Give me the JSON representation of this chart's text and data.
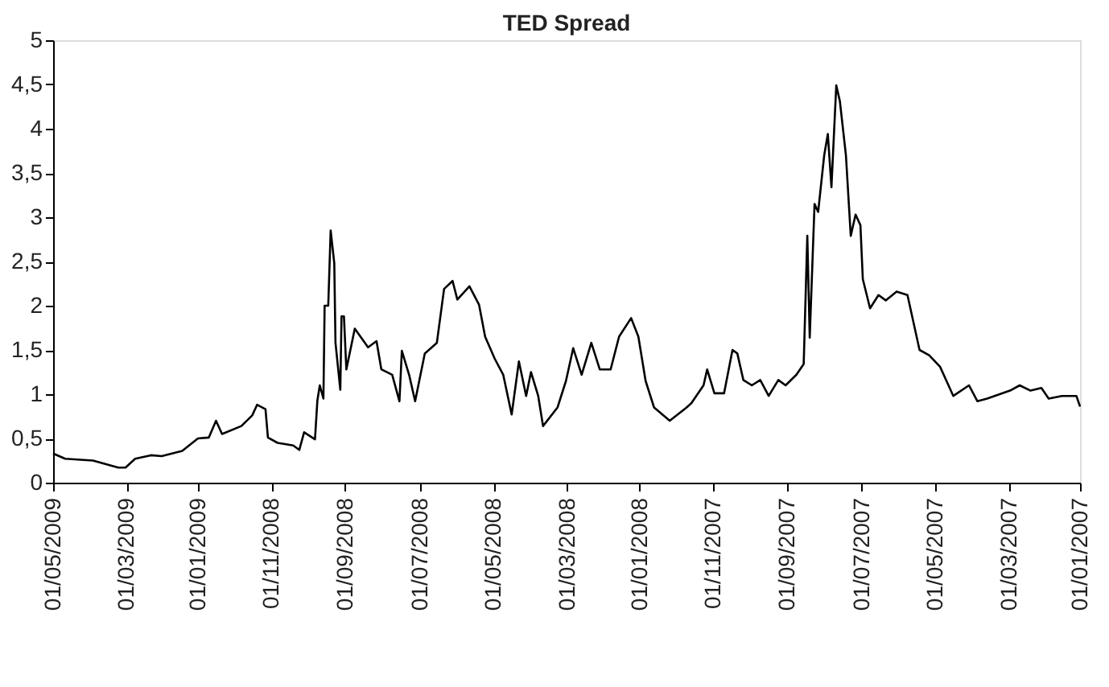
{
  "chart_data": {
    "type": "line",
    "title": "TED Spread",
    "x": [
      "2009-05-01",
      "2009-04-21",
      "2009-03-29",
      "2009-03-08",
      "2009-03-02",
      "2009-02-22",
      "2009-02-09",
      "2009-01-31",
      "2009-01-14",
      "2009-01-01",
      "2008-12-23",
      "2008-12-17",
      "2008-12-12",
      "2008-11-26",
      "2008-11-17",
      "2008-11-13",
      "2008-11-06",
      "2008-11-04",
      "2008-10-27",
      "2008-10-14",
      "2008-10-09",
      "2008-10-05",
      "2008-09-26",
      "2008-09-24",
      "2008-09-22",
      "2008-09-19",
      "2008-09-18",
      "2008-09-15",
      "2008-09-13",
      "2008-09-10",
      "2008-09-09",
      "2008-09-05",
      "2008-09-04",
      "2008-09-02",
      "2008-08-31",
      "2008-08-24",
      "2008-08-13",
      "2008-08-06",
      "2008-08-02",
      "2008-07-24",
      "2008-07-18",
      "2008-07-16",
      "2008-07-10",
      "2008-07-05",
      "2008-06-27",
      "2008-06-17",
      "2008-06-11",
      "2008-06-04",
      "2008-05-31",
      "2008-05-21",
      "2008-05-13",
      "2008-05-08",
      "2008-04-30",
      "2008-04-23",
      "2008-04-16",
      "2008-04-10",
      "2008-04-04",
      "2008-03-31",
      "2008-03-25",
      "2008-03-21",
      "2008-03-09",
      "2008-03-02",
      "2008-02-25",
      "2008-02-18",
      "2008-02-10",
      "2008-02-03",
      "2008-01-25",
      "2008-01-18",
      "2008-01-08",
      "2008-01-02",
      "2007-12-27",
      "2007-12-20",
      "2007-12-07",
      "2007-11-23",
      "2007-11-19",
      "2007-11-09",
      "2007-11-06",
      "2007-10-31",
      "2007-10-23",
      "2007-10-16",
      "2007-10-12",
      "2007-10-07",
      "2007-09-30",
      "2007-09-23",
      "2007-09-16",
      "2007-09-08",
      "2007-09-02",
      "2007-08-24",
      "2007-08-18",
      "2007-08-15",
      "2007-08-13",
      "2007-08-09",
      "2007-08-06",
      "2007-08-01",
      "2007-07-29",
      "2007-07-26",
      "2007-07-22",
      "2007-07-19",
      "2007-07-14",
      "2007-07-10",
      "2007-07-06",
      "2007-07-02",
      "2007-06-30",
      "2007-06-24",
      "2007-06-17",
      "2007-06-11",
      "2007-06-02",
      "2007-05-24",
      "2007-05-14",
      "2007-05-06",
      "2007-04-27",
      "2007-04-20",
      "2007-04-16",
      "2007-04-03",
      "2007-03-27",
      "2007-03-19",
      "2007-02-28",
      "2007-02-20",
      "2007-02-11",
      "2007-02-02",
      "2007-01-27",
      "2007-01-16",
      "2007-01-04",
      "2007-01-01"
    ],
    "series": [
      {
        "color": "#000000",
        "values": [
          0.33,
          0.27,
          0.25,
          0.17,
          0.17,
          0.27,
          0.31,
          0.3,
          0.36,
          0.5,
          0.51,
          0.7,
          0.55,
          0.64,
          0.76,
          0.88,
          0.83,
          0.51,
          0.45,
          0.42,
          0.37,
          0.57,
          0.49,
          0.93,
          1.1,
          0.95,
          2.0,
          2.0,
          2.85,
          2.48,
          1.58,
          1.05,
          1.88,
          1.88,
          1.28,
          1.74,
          1.53,
          1.6,
          1.28,
          1.22,
          0.92,
          1.49,
          1.22,
          0.92,
          1.46,
          1.58,
          2.19,
          2.28,
          2.07,
          2.22,
          2.01,
          1.65,
          1.4,
          1.22,
          0.77,
          1.37,
          0.98,
          1.25,
          0.98,
          0.64,
          0.85,
          1.15,
          1.52,
          1.22,
          1.58,
          1.28,
          1.28,
          1.65,
          1.86,
          1.65,
          1.15,
          0.85,
          0.7,
          0.85,
          0.9,
          1.1,
          1.28,
          1.01,
          1.01,
          1.5,
          1.46,
          1.16,
          1.1,
          1.16,
          0.98,
          1.16,
          1.1,
          1.22,
          1.34,
          2.79,
          1.64,
          3.15,
          3.06,
          3.7,
          3.94,
          3.34,
          4.49,
          4.31,
          3.7,
          2.79,
          3.03,
          2.91,
          2.3,
          1.97,
          2.12,
          2.06,
          2.16,
          2.12,
          1.5,
          1.44,
          1.31,
          1.1,
          0.98,
          1.1,
          0.92,
          0.95,
          1.04,
          1.1,
          1.04,
          1.07,
          0.95,
          0.98,
          0.98,
          0.86
        ]
      }
    ],
    "xlim": [
      "2009-05-01",
      "2007-01-01"
    ],
    "xticks": [
      {
        "value": "2009-05-01",
        "label": "01/05/2009"
      },
      {
        "value": "2009-03-01",
        "label": "01/03/2009"
      },
      {
        "value": "2009-01-01",
        "label": "01/01/2009"
      },
      {
        "value": "2008-11-01",
        "label": "01/11/2008"
      },
      {
        "value": "2008-09-01",
        "label": "01/09/2008"
      },
      {
        "value": "2008-07-01",
        "label": "01/07/2008"
      },
      {
        "value": "2008-05-01",
        "label": "01/05/2008"
      },
      {
        "value": "2008-03-01",
        "label": "01/03/2008"
      },
      {
        "value": "2008-01-01",
        "label": "01/01/2008"
      },
      {
        "value": "2007-11-01",
        "label": "01/11/2007"
      },
      {
        "value": "2007-09-01",
        "label": "01/09/2007"
      },
      {
        "value": "2007-07-01",
        "label": "01/07/2007"
      },
      {
        "value": "2007-05-01",
        "label": "01/05/2007"
      },
      {
        "value": "2007-03-01",
        "label": "01/03/2007"
      },
      {
        "value": "2007-01-01",
        "label": "01/01/2007"
      }
    ],
    "ylim": [
      0,
      5
    ],
    "yticks": [
      0,
      {
        "value": 0.5,
        "label": "0,5"
      },
      1,
      {
        "value": 1.5,
        "label": "1,5"
      },
      2,
      {
        "value": 2.5,
        "label": "2,5"
      },
      3,
      {
        "value": 3.5,
        "label": "3,5"
      },
      4,
      {
        "value": 4.5,
        "label": "4,5"
      },
      5
    ],
    "grid": false,
    "marker": "none",
    "line_style": "solid"
  }
}
